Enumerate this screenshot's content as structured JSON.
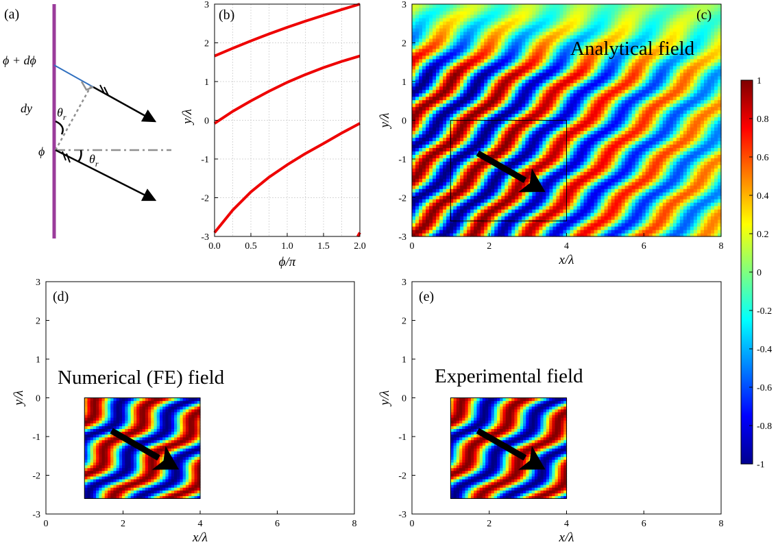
{
  "panels": {
    "a": {
      "tag": "(a)",
      "phase_top": "ϕ + dϕ",
      "dy": "dy",
      "theta_a": "θ",
      "theta_b": "θ",
      "subscript": "r",
      "phase_bottom": "ϕ"
    },
    "b": {
      "tag": "(b)"
    },
    "c": {
      "tag": "(c)",
      "title": "Analytical field"
    },
    "d": {
      "tag": "(d)",
      "title": "Numerical (FE) field"
    },
    "e": {
      "tag": "(e)",
      "title": "Experimental field"
    }
  },
  "colors": {
    "curve": "#ee0000",
    "metasurface": "#9b3c9b",
    "ray_blue": "#2f6fbf",
    "ray": "#000000",
    "guide": "#909090"
  },
  "colorbar": {
    "colormap": "jet",
    "ticks": [
      "1",
      "0.8",
      "0.6",
      "0.4",
      "0.2",
      "0",
      "-0.2",
      "-0.4",
      "-0.6",
      "-0.8",
      "-1"
    ]
  },
  "chart_data": [
    {
      "panel": "b",
      "type": "line",
      "xlabel": "ϕ/π",
      "ylabel": "y/λ",
      "xlim": [
        0,
        2
      ],
      "ylim": [
        -3,
        3
      ],
      "xticks": [
        "0.0",
        "0.5",
        "1.0",
        "1.5",
        "2.0"
      ],
      "yticks": [
        "3",
        "2",
        "1",
        "0",
        "-1",
        "-2",
        "-3"
      ],
      "grid": true,
      "series": [
        {
          "x": [
            0,
            0.25,
            0.5,
            0.75,
            1.0,
            1.25,
            1.5,
            1.75,
            2.0
          ],
          "y": [
            1.66,
            1.86,
            2.05,
            2.23,
            2.4,
            2.56,
            2.71,
            2.86,
            3.0
          ]
        },
        {
          "x": [
            0,
            0.25,
            0.5,
            0.75,
            1.0,
            1.25,
            1.5,
            1.75,
            2.0
          ],
          "y": [
            -0.08,
            0.23,
            0.5,
            0.75,
            0.98,
            1.18,
            1.36,
            1.52,
            1.66
          ]
        },
        {
          "x": [
            0,
            0.25,
            0.5,
            0.75,
            1.0,
            1.25,
            1.5,
            1.75,
            2.0
          ],
          "y": [
            -2.9,
            -2.32,
            -1.85,
            -1.47,
            -1.15,
            -0.86,
            -0.6,
            -0.33,
            -0.08
          ]
        },
        {
          "x": [
            1.97,
            2.0
          ],
          "y": [
            -3.0,
            -2.9
          ]
        }
      ]
    },
    {
      "panel": "c",
      "type": "heatmap",
      "xlabel": "x/λ",
      "ylabel": "y/λ",
      "xlim": [
        0,
        8
      ],
      "ylim": [
        -3,
        3
      ],
      "xticks": [
        "0",
        "2",
        "4",
        "6",
        "8"
      ],
      "yticks": [
        "3",
        "2",
        "1",
        "0",
        "-1",
        "-2",
        "-3"
      ],
      "zrange": [
        -1,
        1
      ],
      "inset_box": {
        "x": [
          1,
          4
        ],
        "y": [
          -2.6,
          0
        ]
      },
      "arrow": {
        "from": [
          1.7,
          -0.85
        ],
        "to": [
          3.45,
          -1.85
        ]
      }
    },
    {
      "panel": "d",
      "type": "heatmap",
      "xlabel": "x/λ",
      "ylabel": "y/λ",
      "xlim": [
        0,
        8
      ],
      "ylim": [
        -3,
        3
      ],
      "xticks": [
        "0",
        "2",
        "4",
        "6",
        "8"
      ],
      "yticks": [
        "3",
        "2",
        "1",
        "0",
        "-1",
        "-2",
        "-3"
      ],
      "zrange": [
        -1,
        1
      ],
      "field_region": {
        "x": [
          1,
          4
        ],
        "y": [
          -2.6,
          0
        ]
      },
      "arrow": {
        "from": [
          1.7,
          -0.85
        ],
        "to": [
          3.45,
          -1.85
        ]
      }
    },
    {
      "panel": "e",
      "type": "heatmap",
      "xlabel": "x/λ",
      "ylabel": "y/λ",
      "xlim": [
        0,
        8
      ],
      "ylim": [
        -3,
        3
      ],
      "xticks": [
        "0",
        "2",
        "4",
        "6",
        "8"
      ],
      "yticks": [
        "3",
        "2",
        "1",
        "0",
        "-1",
        "-2",
        "-3"
      ],
      "zrange": [
        -1,
        1
      ],
      "field_region": {
        "x": [
          1,
          4
        ],
        "y": [
          -2.6,
          0
        ]
      },
      "arrow": {
        "from": [
          1.7,
          -0.85
        ],
        "to": [
          3.45,
          -1.85
        ]
      }
    }
  ]
}
